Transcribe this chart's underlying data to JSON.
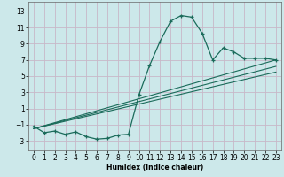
{
  "xlabel": "Humidex (Indice chaleur)",
  "bg_color": "#cce8ea",
  "grid_color": "#c8b8c8",
  "line_color": "#1a6b5a",
  "x_ticks": [
    0,
    1,
    2,
    3,
    4,
    5,
    6,
    7,
    8,
    9,
    10,
    11,
    12,
    13,
    14,
    15,
    16,
    17,
    18,
    19,
    20,
    21,
    22,
    23
  ],
  "y_ticks": [
    -3,
    -1,
    1,
    3,
    5,
    7,
    9,
    11,
    13
  ],
  "xlim": [
    -0.5,
    23.5
  ],
  "ylim": [
    -4.2,
    14.2
  ],
  "series1_x": [
    0,
    1,
    2,
    3,
    4,
    5,
    6,
    7,
    8,
    9,
    10,
    11,
    12,
    13,
    14,
    15,
    16,
    17,
    18,
    19,
    20,
    21,
    22,
    23
  ],
  "series1_y": [
    -1.2,
    -2.0,
    -1.8,
    -2.2,
    -1.9,
    -2.5,
    -2.8,
    -2.7,
    -2.3,
    -2.2,
    2.7,
    6.3,
    9.3,
    11.8,
    12.5,
    12.3,
    10.3,
    7.0,
    8.5,
    8.0,
    7.2,
    7.2,
    7.2,
    7.0
  ],
  "line1_x": [
    0,
    23
  ],
  "line1_y": [
    -1.5,
    7.0
  ],
  "line2_x": [
    0,
    23
  ],
  "line2_y": [
    -1.5,
    6.2
  ],
  "line3_x": [
    0,
    23
  ],
  "line3_y": [
    -1.5,
    5.5
  ],
  "xlabel_fontsize": 5.5,
  "tick_fontsize": 5.5
}
